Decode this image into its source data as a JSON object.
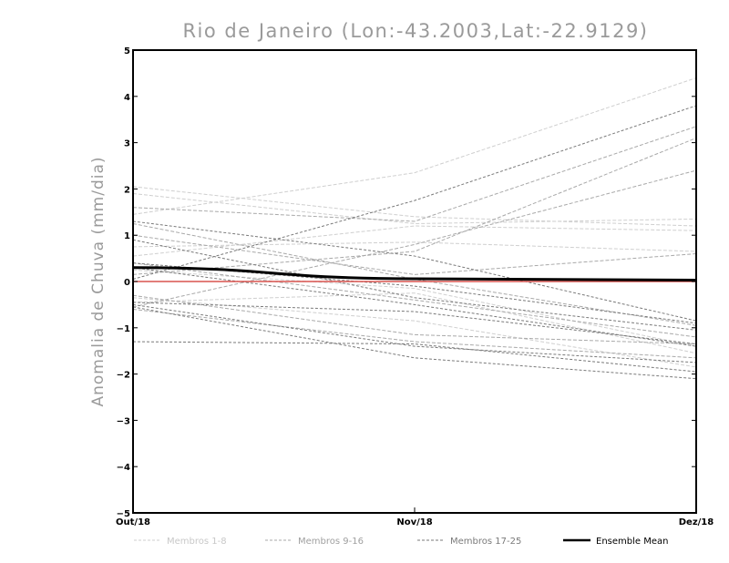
{
  "chart_data": {
    "type": "line",
    "title": "Rio de Janeiro (Lon:-43.2003,Lat:-22.9129)",
    "xlabel": "",
    "ylabel": "Anomalia de Chuva (mm/dia)",
    "categories": [
      "Out/18",
      "Nov/18",
      "Dez/18"
    ],
    "ylim": [
      -5,
      5
    ],
    "yticks": [
      -5,
      -4,
      -3,
      -2,
      -1,
      0,
      1,
      2,
      3,
      4,
      5
    ],
    "grid": false,
    "legend_position": "bottom",
    "zero_line_color": "#d9534f",
    "series": [
      {
        "group": 0,
        "values": [
          2.05,
          1.4,
          1.2
        ]
      },
      {
        "group": 0,
        "values": [
          1.9,
          1.25,
          1.35
        ]
      },
      {
        "group": 0,
        "values": [
          1.45,
          2.35,
          4.4
        ]
      },
      {
        "group": 0,
        "values": [
          0.75,
          0.85,
          0.65
        ]
      },
      {
        "group": 0,
        "values": [
          0.55,
          1.2,
          1.1
        ]
      },
      {
        "group": 0,
        "values": [
          -0.35,
          -0.85,
          -1.85
        ]
      },
      {
        "group": 0,
        "values": [
          -0.45,
          -0.25,
          -1.55
        ]
      },
      {
        "group": 0,
        "values": [
          0.25,
          -0.15,
          -1.4
        ]
      },
      {
        "group": 1,
        "values": [
          1.6,
          1.3,
          3.35
        ]
      },
      {
        "group": 1,
        "values": [
          1.25,
          0.05,
          -0.95
        ]
      },
      {
        "group": 1,
        "values": [
          0.15,
          0.65,
          3.1
        ]
      },
      {
        "group": 1,
        "values": [
          -0.55,
          0.8,
          2.4
        ]
      },
      {
        "group": 1,
        "values": [
          0.4,
          -0.4,
          -1.2
        ]
      },
      {
        "group": 1,
        "values": [
          -0.3,
          -1.15,
          -1.35
        ]
      },
      {
        "group": 1,
        "values": [
          1.0,
          0.15,
          0.6
        ]
      },
      {
        "group": 1,
        "values": [
          -0.6,
          -1.3,
          -1.65
        ]
      },
      {
        "group": 2,
        "values": [
          0.05,
          1.75,
          3.8
        ]
      },
      {
        "group": 2,
        "values": [
          1.3,
          0.55,
          -0.85
        ]
      },
      {
        "group": 2,
        "values": [
          0.9,
          -0.35,
          -1.05
        ]
      },
      {
        "group": 2,
        "values": [
          0.3,
          -0.5,
          -1.4
        ]
      },
      {
        "group": 2,
        "values": [
          -0.45,
          -0.65,
          -1.35
        ]
      },
      {
        "group": 2,
        "values": [
          -0.5,
          -1.4,
          -1.75
        ]
      },
      {
        "group": 2,
        "values": [
          -1.3,
          -1.35,
          -1.95
        ]
      },
      {
        "group": 2,
        "values": [
          -0.55,
          -1.65,
          -2.1
        ]
      },
      {
        "group": 2,
        "values": [
          0.4,
          -0.1,
          -0.9
        ]
      }
    ],
    "ensemble_mean": {
      "name": "Ensemble Mean",
      "values": [
        0.3,
        0.06,
        0.03
      ]
    },
    "groups": [
      {
        "label": "Membros 1-8",
        "color": "#cfcfcf"
      },
      {
        "label": "Membros 9-16",
        "color": "#a9a9a9"
      },
      {
        "label": "Membros 17-25",
        "color": "#7a7a7a"
      },
      {
        "label": "Ensemble Mean",
        "color": "#000000"
      }
    ]
  }
}
